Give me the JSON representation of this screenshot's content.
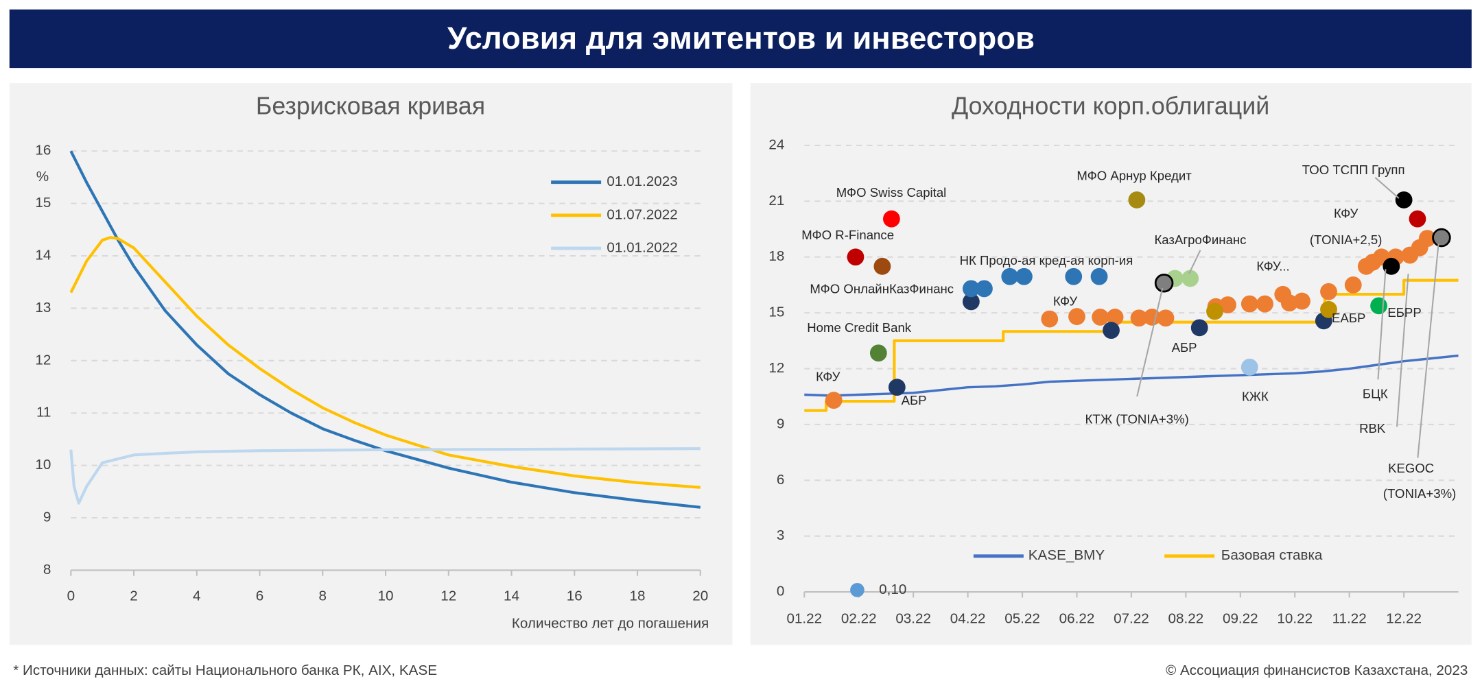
{
  "header": {
    "title": "Условия для эмитентов и инвесторов"
  },
  "chart_data": [
    {
      "type": "line",
      "title": "Безрисковая кривая",
      "ylabel": "%",
      "xlabel": "Количество лет до погашения",
      "xlim": [
        0,
        20
      ],
      "xticks": [
        0,
        2,
        4,
        6,
        8,
        10,
        12,
        14,
        16,
        18,
        20
      ],
      "ylim": [
        8,
        16
      ],
      "yticks": [
        8,
        9,
        10,
        11,
        12,
        13,
        14,
        15,
        16
      ],
      "grid": true,
      "legend": "upper right",
      "series": [
        {
          "name": "01.01.2023",
          "color": "#2e75b6",
          "x": [
            0,
            0.5,
            1,
            1.5,
            2,
            3,
            4,
            5,
            6,
            7,
            8,
            9,
            10,
            12,
            14,
            16,
            18,
            20
          ],
          "values": [
            16,
            15.4,
            14.85,
            14.3,
            13.8,
            12.95,
            12.3,
            11.75,
            11.35,
            11.0,
            10.7,
            10.48,
            10.28,
            9.95,
            9.68,
            9.48,
            9.33,
            9.2
          ]
        },
        {
          "name": "01.07.2022",
          "color": "#ffc000",
          "x": [
            0,
            0.5,
            1,
            1.25,
            1.5,
            2,
            3,
            4,
            5,
            6,
            7,
            8,
            9,
            10,
            12,
            14,
            16,
            18,
            20
          ],
          "values": [
            13.3,
            13.9,
            14.3,
            14.35,
            14.33,
            14.15,
            13.5,
            12.85,
            12.3,
            11.85,
            11.45,
            11.1,
            10.82,
            10.58,
            10.2,
            9.98,
            9.8,
            9.67,
            9.58
          ]
        },
        {
          "name": "01.01.2022",
          "color": "#bdd7ee",
          "x": [
            0,
            0.1,
            0.25,
            0.5,
            1,
            2,
            4,
            6,
            10,
            20
          ],
          "values": [
            10.3,
            9.6,
            9.28,
            9.6,
            10.05,
            10.2,
            10.26,
            10.28,
            10.3,
            10.32
          ]
        }
      ]
    },
    {
      "type": "scatter",
      "title": "Доходности корп.облигаций",
      "xlim": [
        0,
        12
      ],
      "xticks": [
        {
          "value": 0,
          "label": "01.22"
        },
        {
          "value": 1,
          "label": "02.22"
        },
        {
          "value": 2,
          "label": "03.22"
        },
        {
          "value": 3,
          "label": "04.22"
        },
        {
          "value": 4,
          "label": "05.22"
        },
        {
          "value": 5,
          "label": "06.22"
        },
        {
          "value": 6,
          "label": "07.22"
        },
        {
          "value": 7,
          "label": "08.22"
        },
        {
          "value": 8,
          "label": "09.22"
        },
        {
          "value": 9,
          "label": "10.22"
        },
        {
          "value": 10,
          "label": "11.22"
        },
        {
          "value": 11,
          "label": "12.22"
        }
      ],
      "ylim": [
        0,
        24
      ],
      "yticks": [
        0,
        3,
        6,
        9,
        12,
        15,
        18,
        21,
        24
      ],
      "grid": true,
      "series": [
        {
          "name": "KASE_BMY",
          "type": "line",
          "color": "#4472c4",
          "x": [
            0,
            0.5,
            1,
            1.5,
            2,
            2.5,
            3,
            3.5,
            4,
            4.5,
            5,
            5.5,
            6,
            6.5,
            7,
            7.5,
            8,
            8.5,
            9,
            9.5,
            10,
            10.5,
            11,
            11.5,
            12
          ],
          "values": [
            10.6,
            10.55,
            10.6,
            10.65,
            10.7,
            10.85,
            11.0,
            11.05,
            11.15,
            11.3,
            11.35,
            11.4,
            11.45,
            11.5,
            11.55,
            11.6,
            11.65,
            11.7,
            11.75,
            11.85,
            12.0,
            12.2,
            12.4,
            12.55,
            12.7
          ]
        },
        {
          "name": "Базовая ставка",
          "type": "line",
          "color": "#ffc000",
          "x": [
            0,
            0.4,
            0.4,
            1.65,
            1.65,
            3.65,
            3.65,
            5.7,
            5.7,
            9.55,
            9.55,
            11.0,
            11.0,
            12
          ],
          "values": [
            9.75,
            9.75,
            10.25,
            10.25,
            13.5,
            13.5,
            14,
            14,
            14.5,
            14.5,
            16,
            16,
            16.75,
            16.75
          ]
        },
        {
          "name": "0,10",
          "type": "scatter",
          "color": "#5b9bd5",
          "x": [
            0.54,
            4.5,
            5.0,
            5.43,
            5.7,
            6.14,
            6.38,
            6.63,
            7.55,
            7.77,
            8.17,
            8.45,
            8.78,
            9.13,
            9.62,
            10.07,
            10.31,
            10.59,
            10.85,
            11.11,
            11.29,
            11.43,
            1.7,
            3.06,
            3.06,
            3.3,
            5.63,
            7.25,
            9.53,
            3.77,
            4.03,
            4.94,
            5.41,
            0.94,
            11.25,
            1.6,
            1.43,
            6.1,
            1.36,
            6.8,
            7.08,
            6.6,
            11.0,
            8.17,
            10.54,
            7.53,
            9.62,
            8.9,
            10.43,
            11.69,
            10.77
          ],
          "values": [
            10.3,
            14.67,
            14.8,
            14.77,
            14.77,
            14.72,
            14.77,
            14.72,
            15.33,
            15.43,
            15.48,
            15.48,
            15.99,
            15.63,
            16.14,
            16.5,
            17.5,
            18.0,
            18.0,
            18.1,
            18.5,
            19.0,
            11.0,
            15.6,
            16.3,
            16.3,
            14.06,
            14.2,
            14.57,
            16.95,
            16.95,
            16.95,
            16.95,
            18.0,
            20.05,
            20.05,
            17.5,
            21.07,
            12.84,
            16.85,
            16.85,
            16.6,
            21.07,
            12.08,
            15.38,
            15.08,
            15.18,
            15.53,
            17.72,
            19.04,
            17.5
          ],
          "colors": [
            "#ed7d31",
            "#ed7d31",
            "#ed7d31",
            "#ed7d31",
            "#ed7d31",
            "#ed7d31",
            "#ed7d31",
            "#ed7d31",
            "#ed7d31",
            "#ed7d31",
            "#ed7d31",
            "#ed7d31",
            "#ed7d31",
            "#ed7d31",
            "#ed7d31",
            "#ed7d31",
            "#ed7d31",
            "#ed7d31",
            "#ed7d31",
            "#ed7d31",
            "#ed7d31",
            "#ed7d31",
            "#1f3864",
            "#1f3864",
            "#2e75b6",
            "#2e75b6",
            "#1f3864",
            "#1f3864",
            "#1f3864",
            "#2e75b6",
            "#2e75b6",
            "#2e75b6",
            "#2e75b6",
            "#c00000",
            "#c00000",
            "#ff0000",
            "#9c4a0f",
            "#a68a12",
            "#548235",
            "#a9d18e",
            "#a9d18e",
            "#7f7f7f",
            "#000000",
            "#9dc3e6",
            "#00b050",
            "#bf9000",
            "#bf9000",
            "#ed7d31",
            "#ed7d31",
            "#7f7f7f",
            "#000000"
          ]
        }
      ],
      "annotations": [
        "МФО Swiss Capital",
        "МФО R-Finance",
        "МФО ОнлайнКазФинанс",
        "Home Credit Bank",
        "КФУ",
        "АБР",
        "НК Продо-ая кред-ая корп-ия",
        "МФО Арнур Кредит",
        "КазАгроФинанс",
        "КФУ",
        "КФУ...",
        "ТОО ТСПП Групп",
        "КФУ",
        "(TONIA+2,5)",
        "АБР",
        "КТЖ (TONIA+3%)",
        "КЖК",
        "ЕАБР",
        "ЕБРР",
        "БЦК",
        "RBK",
        "KEGOC",
        "(TONIA+3%)"
      ]
    }
  ],
  "footer": {
    "source": "* Источники данных: сайты Национального банка РК, AIX, KASE",
    "copyright": "© Ассоциация финансистов Казахстана, 2023"
  }
}
